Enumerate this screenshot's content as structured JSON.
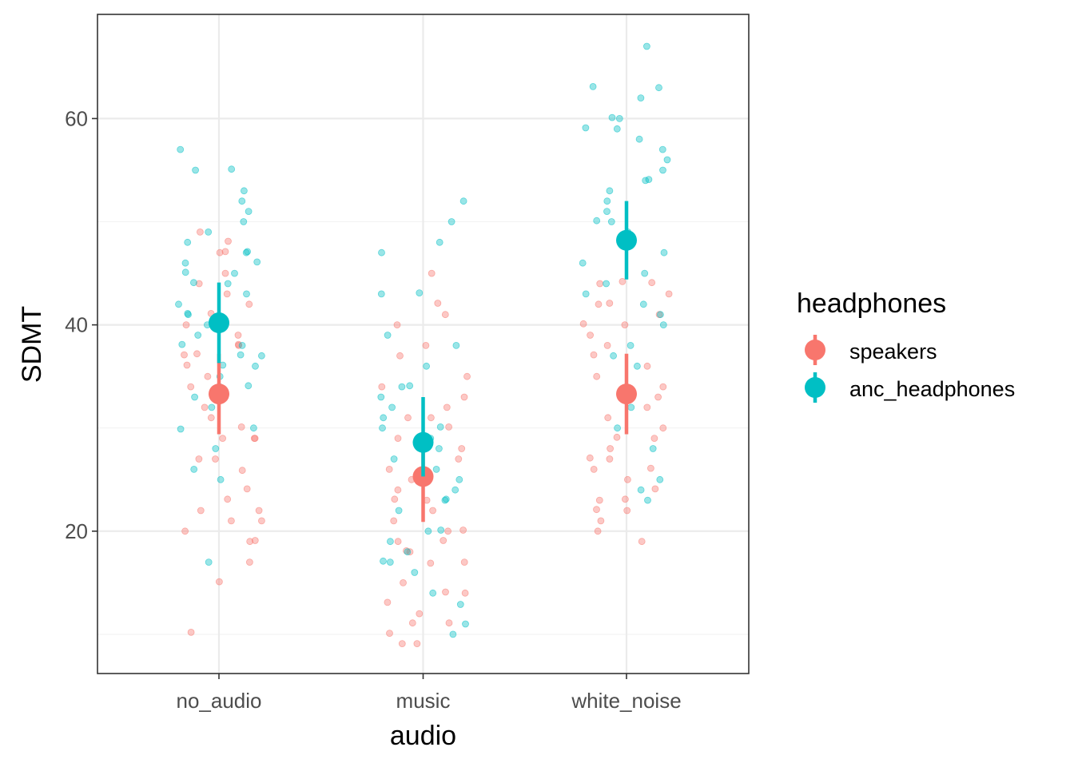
{
  "colors": {
    "speakers": "#F8766D",
    "anc_headphones": "#00BFC4",
    "grid_major": "#EBEBEB",
    "grid_minor": "#F2F2F2",
    "panel_border": "#333333"
  },
  "chart_data": {
    "type": "scatter",
    "title": "",
    "xlabel": "audio",
    "ylabel": "SDMT",
    "categories": [
      "no_audio",
      "music",
      "white_noise"
    ],
    "ylim": [
      6.2,
      70.1
    ],
    "y_ticks": [
      20,
      40,
      60
    ],
    "y_tick_labels": [
      "20",
      "40",
      "60"
    ],
    "grid": true,
    "legend": {
      "title": "headphones",
      "placement": "right",
      "entries": [
        "speakers",
        "anc_headphones"
      ]
    },
    "series": [
      {
        "name": "speakers",
        "color": "#F8766D",
        "means": [
          33.3,
          25.3,
          33.3
        ],
        "ci_low": [
          29.4,
          20.9,
          29.4
        ],
        "ci_high": [
          37.2,
          29.6,
          37.2
        ],
        "points": [
          [
            0,
            10.2
          ],
          [
            0,
            15.1
          ],
          [
            0,
            17.0
          ],
          [
            0,
            19.0
          ],
          [
            0,
            19.1
          ],
          [
            0,
            20.0
          ],
          [
            0,
            21.0
          ],
          [
            0,
            21.0
          ],
          [
            0,
            22.0
          ],
          [
            0,
            22.0
          ],
          [
            0,
            23.1
          ],
          [
            0,
            24.1
          ],
          [
            0,
            25.9
          ],
          [
            0,
            27.0
          ],
          [
            0,
            27.0
          ],
          [
            0,
            29.0
          ],
          [
            0,
            29.0
          ],
          [
            0,
            29.0
          ],
          [
            0,
            30.1
          ],
          [
            0,
            31.0
          ],
          [
            0,
            32.0
          ],
          [
            0,
            33.1
          ],
          [
            0,
            34.0
          ],
          [
            0,
            35.0
          ],
          [
            0,
            36.1
          ],
          [
            0,
            37.1
          ],
          [
            0,
            37.2
          ],
          [
            0,
            38.0
          ],
          [
            0,
            38.1
          ],
          [
            0,
            39.0
          ],
          [
            0,
            40.0
          ],
          [
            0,
            41.1
          ],
          [
            0,
            42.0
          ],
          [
            0,
            43.0
          ],
          [
            0,
            44.0
          ],
          [
            0,
            45.0
          ],
          [
            0,
            47.0
          ],
          [
            0,
            47.1
          ],
          [
            0,
            48.1
          ],
          [
            0,
            49.0
          ],
          [
            1,
            9.1
          ],
          [
            1,
            9.1
          ],
          [
            1,
            10.1
          ],
          [
            1,
            11.1
          ],
          [
            1,
            11.1
          ],
          [
            1,
            12.0
          ],
          [
            1,
            13.1
          ],
          [
            1,
            14.0
          ],
          [
            1,
            14.1
          ],
          [
            1,
            15.0
          ],
          [
            1,
            16.9
          ],
          [
            1,
            17.0
          ],
          [
            1,
            18.0
          ],
          [
            1,
            18.1
          ],
          [
            1,
            19.0
          ],
          [
            1,
            19.1
          ],
          [
            1,
            20.0
          ],
          [
            1,
            20.1
          ],
          [
            1,
            21.0
          ],
          [
            1,
            22.0
          ],
          [
            1,
            23.0
          ],
          [
            1,
            23.1
          ],
          [
            1,
            24.0
          ],
          [
            1,
            25.0
          ],
          [
            1,
            26.0
          ],
          [
            1,
            27.0
          ],
          [
            1,
            28.0
          ],
          [
            1,
            29.0
          ],
          [
            1,
            30.1
          ],
          [
            1,
            31.0
          ],
          [
            1,
            31.0
          ],
          [
            1,
            32.0
          ],
          [
            1,
            33.0
          ],
          [
            1,
            34.0
          ],
          [
            1,
            35.0
          ],
          [
            1,
            37.0
          ],
          [
            1,
            38.0
          ],
          [
            1,
            40.0
          ],
          [
            1,
            41.0
          ],
          [
            1,
            42.1
          ],
          [
            1,
            45.0
          ],
          [
            2,
            19.0
          ],
          [
            2,
            20.0
          ],
          [
            2,
            21.0
          ],
          [
            2,
            22.0
          ],
          [
            2,
            22.1
          ],
          [
            2,
            23.0
          ],
          [
            2,
            23.1
          ],
          [
            2,
            24.1
          ],
          [
            2,
            25.0
          ],
          [
            2,
            26.0
          ],
          [
            2,
            26.1
          ],
          [
            2,
            27.0
          ],
          [
            2,
            27.1
          ],
          [
            2,
            28.0
          ],
          [
            2,
            29.0
          ],
          [
            2,
            29.1
          ],
          [
            2,
            30.0
          ],
          [
            2,
            31.0
          ],
          [
            2,
            32.0
          ],
          [
            2,
            33.0
          ],
          [
            2,
            34.0
          ],
          [
            2,
            35.0
          ],
          [
            2,
            36.0
          ],
          [
            2,
            37.1
          ],
          [
            2,
            38.0
          ],
          [
            2,
            39.0
          ],
          [
            2,
            40.0
          ],
          [
            2,
            40.1
          ],
          [
            2,
            41.0
          ],
          [
            2,
            42.0
          ],
          [
            2,
            42.1
          ],
          [
            2,
            43.0
          ],
          [
            2,
            44.0
          ],
          [
            2,
            44.1
          ],
          [
            2,
            44.2
          ]
        ]
      },
      {
        "name": "anc_headphones",
        "color": "#00BFC4",
        "means": [
          40.2,
          28.6,
          48.2
        ],
        "ci_low": [
          36.3,
          25.3,
          44.4
        ],
        "ci_high": [
          44.1,
          33.0,
          52.0
        ],
        "points": [
          [
            0,
            17.0
          ],
          [
            0,
            25.0
          ],
          [
            0,
            26.0
          ],
          [
            0,
            28.0
          ],
          [
            0,
            29.9
          ],
          [
            0,
            30.0
          ],
          [
            0,
            32.0
          ],
          [
            0,
            33.0
          ],
          [
            0,
            34.0
          ],
          [
            0,
            34.1
          ],
          [
            0,
            35.0
          ],
          [
            0,
            36.0
          ],
          [
            0,
            36.1
          ],
          [
            0,
            37.0
          ],
          [
            0,
            37.1
          ],
          [
            0,
            38.0
          ],
          [
            0,
            38.1
          ],
          [
            0,
            39.0
          ],
          [
            0,
            40.0
          ],
          [
            0,
            41.0
          ],
          [
            0,
            41.1
          ],
          [
            0,
            42.0
          ],
          [
            0,
            43.0
          ],
          [
            0,
            44.0
          ],
          [
            0,
            44.1
          ],
          [
            0,
            45.0
          ],
          [
            0,
            45.1
          ],
          [
            0,
            46.0
          ],
          [
            0,
            46.1
          ],
          [
            0,
            47.0
          ],
          [
            0,
            47.1
          ],
          [
            0,
            48.0
          ],
          [
            0,
            49.0
          ],
          [
            0,
            50.0
          ],
          [
            0,
            51.0
          ],
          [
            0,
            52.0
          ],
          [
            0,
            53.0
          ],
          [
            0,
            55.0
          ],
          [
            0,
            55.1
          ],
          [
            0,
            57.0
          ],
          [
            1,
            10.0
          ],
          [
            1,
            11.0
          ],
          [
            1,
            12.9
          ],
          [
            1,
            14.0
          ],
          [
            1,
            16.0
          ],
          [
            1,
            17.0
          ],
          [
            1,
            17.1
          ],
          [
            1,
            18.0
          ],
          [
            1,
            19.0
          ],
          [
            1,
            20.0
          ],
          [
            1,
            20.1
          ],
          [
            1,
            22.0
          ],
          [
            1,
            23.0
          ],
          [
            1,
            23.1
          ],
          [
            1,
            24.0
          ],
          [
            1,
            25.0
          ],
          [
            1,
            26.0
          ],
          [
            1,
            27.0
          ],
          [
            1,
            28.0
          ],
          [
            1,
            29.0
          ],
          [
            1,
            30.0
          ],
          [
            1,
            30.1
          ],
          [
            1,
            31.0
          ],
          [
            1,
            32.0
          ],
          [
            1,
            33.0
          ],
          [
            1,
            34.0
          ],
          [
            1,
            34.1
          ],
          [
            1,
            36.0
          ],
          [
            1,
            38.0
          ],
          [
            1,
            39.0
          ],
          [
            1,
            43.0
          ],
          [
            1,
            43.1
          ],
          [
            1,
            47.0
          ],
          [
            1,
            48.0
          ],
          [
            1,
            50.0
          ],
          [
            1,
            52.0
          ],
          [
            2,
            23.0
          ],
          [
            2,
            24.0
          ],
          [
            2,
            25.0
          ],
          [
            2,
            28.0
          ],
          [
            2,
            30.0
          ],
          [
            2,
            32.0
          ],
          [
            2,
            36.0
          ],
          [
            2,
            37.0
          ],
          [
            2,
            38.0
          ],
          [
            2,
            40.0
          ],
          [
            2,
            41.0
          ],
          [
            2,
            42.0
          ],
          [
            2,
            43.0
          ],
          [
            2,
            44.0
          ],
          [
            2,
            45.0
          ],
          [
            2,
            46.0
          ],
          [
            2,
            47.0
          ],
          [
            2,
            48.0
          ],
          [
            2,
            49.0
          ],
          [
            2,
            50.0
          ],
          [
            2,
            50.1
          ],
          [
            2,
            51.0
          ],
          [
            2,
            52.0
          ],
          [
            2,
            53.0
          ],
          [
            2,
            54.0
          ],
          [
            2,
            54.1
          ],
          [
            2,
            55.0
          ],
          [
            2,
            56.0
          ],
          [
            2,
            57.0
          ],
          [
            2,
            58.0
          ],
          [
            2,
            59.0
          ],
          [
            2,
            59.1
          ],
          [
            2,
            60.0
          ],
          [
            2,
            60.1
          ],
          [
            2,
            62.0
          ],
          [
            2,
            63.0
          ],
          [
            2,
            63.1
          ],
          [
            2,
            67.0
          ]
        ]
      }
    ]
  }
}
